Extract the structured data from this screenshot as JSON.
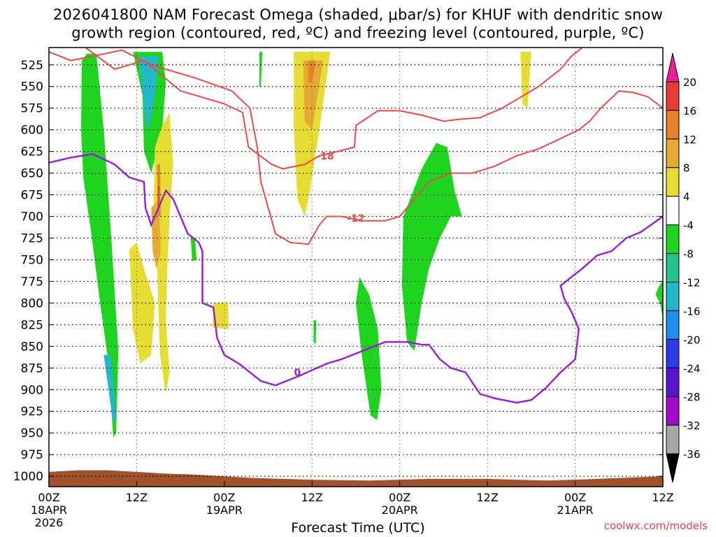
{
  "title": {
    "line1": "2026041800 NAM Forecast Omega (shaded, μbar/s) for KHUF with dendritic snow",
    "line2": "growth region (contoured, red, ºC) and freezing level (contoured, purple, ºC)"
  },
  "footer": "coolwx.com/models",
  "colors": {
    "ascent_green": "#1fd41f",
    "ascent_teal": "#24c48a",
    "ascent_cyan": "#22b8c8",
    "descent_yellow": "#e6dc32",
    "descent_gold": "#e6aa32",
    "descent_orange": "#e8822a",
    "descent_red": "#ea3a3a",
    "snow_growth_contour": "#f04848",
    "freezing_level_contour": "#9a1ad6",
    "ground": "#a0522d"
  },
  "chart_data": {
    "type": "heatmap",
    "xlabel": "Forecast Time (UTC)",
    "x_ticks": [
      {
        "hour": 0,
        "label": "00Z",
        "date": "18APR",
        "year": "2026"
      },
      {
        "hour": 12,
        "label": "12Z",
        "date": "",
        "year": ""
      },
      {
        "hour": 24,
        "label": "00Z",
        "date": "19APR",
        "year": ""
      },
      {
        "hour": 36,
        "label": "12Z",
        "date": "",
        "year": ""
      },
      {
        "hour": 48,
        "label": "00Z",
        "date": "20APR",
        "year": ""
      },
      {
        "hour": 60,
        "label": "12Z",
        "date": "",
        "year": ""
      },
      {
        "hour": 72,
        "label": "00Z",
        "date": "21APR",
        "year": ""
      },
      {
        "hour": 84,
        "label": "12Z",
        "date": "",
        "year": ""
      }
    ],
    "xlim": [
      0,
      84
    ],
    "ylim": [
      1012,
      505
    ],
    "y_ticks": [
      525,
      550,
      575,
      600,
      625,
      650,
      675,
      700,
      725,
      750,
      775,
      800,
      825,
      850,
      875,
      900,
      925,
      950,
      975,
      1000
    ],
    "grid": true,
    "colorbar": {
      "labels": [
        "20",
        "16",
        "12",
        "8",
        "4",
        "-4",
        "-8",
        "-12",
        "-16",
        "-20",
        "-24",
        "-28",
        "-32",
        "-36"
      ],
      "bins": [
        {
          "color": "#ee1e96"
        },
        {
          "color": "#ea3a3a"
        },
        {
          "color": "#e8822a"
        },
        {
          "color": "#e6aa32"
        },
        {
          "color": "#e6dc32"
        },
        {
          "color": "#ffffff"
        },
        {
          "color": "#1fd41f"
        },
        {
          "color": "#24c48a"
        },
        {
          "color": "#22b8c8"
        },
        {
          "color": "#1e8cf0"
        },
        {
          "color": "#2a3ce6"
        },
        {
          "color": "#5a14d0"
        },
        {
          "color": "#a40ac8"
        },
        {
          "color": "#a8a8a8"
        },
        {
          "color": "#000000"
        }
      ]
    },
    "omega_regions": [
      {
        "level": -6,
        "points": [
          [
            5.2,
            512
          ],
          [
            6.5,
            512
          ],
          [
            7.5,
            600
          ],
          [
            8.5,
            720
          ],
          [
            9.5,
            855
          ],
          [
            9.2,
            950
          ],
          [
            8.8,
            955
          ],
          [
            8.0,
            860
          ],
          [
            7.0,
            800
          ],
          [
            5.8,
            720
          ],
          [
            4.7,
            655
          ],
          [
            4.4,
            600
          ],
          [
            4.5,
            520
          ]
        ]
      },
      {
        "level": -6,
        "points": [
          [
            11.5,
            510
          ],
          [
            15.5,
            510
          ],
          [
            16.0,
            545
          ],
          [
            15.5,
            600
          ],
          [
            14.0,
            650
          ],
          [
            13.0,
            625
          ],
          [
            12.8,
            560
          ]
        ]
      },
      {
        "level": -14,
        "points": [
          [
            12.3,
            515
          ],
          [
            15.0,
            515
          ],
          [
            14.5,
            560
          ],
          [
            13.6,
            600
          ],
          [
            13.2,
            590
          ]
        ]
      },
      {
        "level": -14,
        "points": [
          [
            7.5,
            860
          ],
          [
            8.5,
            860
          ],
          [
            9.2,
            930
          ],
          [
            8.8,
            940
          ]
        ]
      },
      {
        "level": -6,
        "points": [
          [
            28.8,
            510
          ],
          [
            29.2,
            510
          ],
          [
            29.0,
            550
          ],
          [
            28.8,
            550
          ]
        ]
      },
      {
        "level": -6,
        "points": [
          [
            19.4,
            725
          ],
          [
            20.0,
            725
          ],
          [
            20.2,
            750
          ],
          [
            19.6,
            752
          ]
        ]
      },
      {
        "level": -6,
        "points": [
          [
            36.2,
            820
          ],
          [
            36.6,
            820
          ],
          [
            36.5,
            848
          ],
          [
            36.2,
            845
          ]
        ]
      },
      {
        "level": -6,
        "points": [
          [
            42.5,
            770
          ],
          [
            43.8,
            790
          ],
          [
            45.0,
            830
          ],
          [
            45.5,
            900
          ],
          [
            44.9,
            935
          ],
          [
            44.0,
            930
          ],
          [
            42.8,
            860
          ],
          [
            42.0,
            800
          ]
        ]
      },
      {
        "level": -6,
        "points": [
          [
            48.5,
            700
          ],
          [
            51.0,
            645
          ],
          [
            53.0,
            615
          ],
          [
            54.5,
            620
          ],
          [
            55.5,
            670
          ],
          [
            56.5,
            700
          ],
          [
            55.0,
            700
          ],
          [
            53.5,
            725
          ],
          [
            52.0,
            760
          ],
          [
            51.0,
            800
          ],
          [
            50.0,
            855
          ],
          [
            49.0,
            845
          ],
          [
            48.3,
            780
          ]
        ]
      },
      {
        "level": -6,
        "points": [
          [
            85.5,
            757
          ],
          [
            86.6,
            760
          ],
          [
            87.0,
            830
          ],
          [
            86.5,
            930
          ],
          [
            86.0,
            940
          ],
          [
            84.8,
            920
          ],
          [
            85.0,
            860
          ],
          [
            83.6,
            800
          ],
          [
            83.0,
            790
          ],
          [
            83.5,
            780
          ]
        ]
      },
      {
        "level": 6,
        "points": [
          [
            11.0,
            738
          ],
          [
            12.0,
            730
          ],
          [
            13.0,
            760
          ],
          [
            14.5,
            800
          ],
          [
            14.0,
            860
          ],
          [
            12.5,
            870
          ],
          [
            11.5,
            830
          ]
        ]
      },
      {
        "level": 6,
        "points": [
          [
            14.5,
            620
          ],
          [
            15.5,
            595
          ],
          [
            16.5,
            580
          ],
          [
            17.0,
            640
          ],
          [
            16.5,
            700
          ],
          [
            16.2,
            760
          ],
          [
            16.0,
            820
          ],
          [
            16.5,
            880
          ],
          [
            16.0,
            905
          ],
          [
            15.2,
            860
          ],
          [
            14.8,
            760
          ],
          [
            14.3,
            700
          ]
        ]
      },
      {
        "level": 6,
        "points": [
          [
            33.5,
            510
          ],
          [
            38.5,
            510
          ],
          [
            37.0,
            600
          ],
          [
            35.5,
            680
          ],
          [
            35.0,
            700
          ],
          [
            34.0,
            680
          ],
          [
            33.5,
            600
          ]
        ]
      },
      {
        "level": 6,
        "points": [
          [
            22.5,
            800
          ],
          [
            24.5,
            800
          ],
          [
            24.6,
            830
          ],
          [
            22.4,
            828
          ]
        ]
      },
      {
        "level": 6,
        "points": [
          [
            64.5,
            510
          ],
          [
            66.0,
            510
          ],
          [
            65.5,
            575
          ],
          [
            64.8,
            570
          ]
        ]
      },
      {
        "level": 10,
        "points": [
          [
            14.0,
            690
          ],
          [
            15.0,
            680
          ],
          [
            15.3,
            740
          ],
          [
            14.7,
            760
          ],
          [
            14.2,
            740
          ]
        ]
      },
      {
        "level": 10,
        "points": [
          [
            34.8,
            520
          ],
          [
            37.5,
            520
          ],
          [
            36.0,
            600
          ],
          [
            35.0,
            590
          ]
        ]
      },
      {
        "level": 14,
        "points": [
          [
            14.8,
            640
          ],
          [
            15.2,
            640
          ],
          [
            15.3,
            700
          ],
          [
            14.9,
            700
          ]
        ]
      },
      {
        "level": 14,
        "points": [
          [
            35.5,
            520
          ],
          [
            36.5,
            520
          ],
          [
            36.0,
            545
          ],
          [
            35.5,
            545
          ]
        ]
      },
      {
        "level": 18,
        "points": [
          [
            14.9,
            665
          ],
          [
            15.1,
            665
          ],
          [
            15.1,
            690
          ],
          [
            14.9,
            690
          ]
        ]
      }
    ],
    "snow_growth_contours": [
      {
        "label": "-12",
        "label_at": [
          42.0,
          702
        ],
        "points": [
          [
            0,
            510
          ],
          [
            3.0,
            520
          ],
          [
            6.0,
            515
          ],
          [
            10.0,
            508
          ],
          [
            14.0,
            525
          ],
          [
            20.0,
            540
          ],
          [
            25.0,
            555
          ],
          [
            27.5,
            575
          ],
          [
            28.5,
            620
          ],
          [
            29.0,
            660
          ],
          [
            30.0,
            690
          ],
          [
            31.0,
            720
          ],
          [
            33.0,
            730
          ],
          [
            35.5,
            732
          ],
          [
            37.0,
            710
          ],
          [
            38.0,
            700
          ],
          [
            40.0,
            700
          ],
          [
            43.0,
            705
          ],
          [
            46.0,
            705
          ],
          [
            48.0,
            700
          ],
          [
            50.0,
            680
          ],
          [
            52.0,
            660
          ],
          [
            55.0,
            650
          ],
          [
            58.0,
            650
          ],
          [
            61.0,
            642
          ],
          [
            64.0,
            630
          ],
          [
            67.0,
            622
          ],
          [
            70.0,
            610
          ],
          [
            72.5,
            600
          ],
          [
            74.0,
            590
          ],
          [
            75.5,
            575
          ],
          [
            78.0,
            555
          ],
          [
            80.0,
            557
          ],
          [
            82.0,
            562
          ],
          [
            84.0,
            575
          ]
        ]
      },
      {
        "label": "-18",
        "label_at": [
          37.8,
          630
        ],
        "points": [
          [
            5.0,
            505
          ],
          [
            9.0,
            530
          ],
          [
            13.0,
            520
          ],
          [
            18.0,
            555
          ],
          [
            24.0,
            570
          ],
          [
            26.5,
            580
          ],
          [
            27.3,
            620
          ],
          [
            30.5,
            640
          ],
          [
            32.0,
            645
          ],
          [
            35.0,
            640
          ],
          [
            37.0,
            630
          ],
          [
            39.5,
            625
          ],
          [
            41.8,
            620
          ],
          [
            42.0,
            595
          ],
          [
            45.0,
            578
          ],
          [
            48.0,
            578
          ],
          [
            51.0,
            583
          ],
          [
            54.0,
            590
          ],
          [
            56.0,
            588
          ],
          [
            59.0,
            586
          ],
          [
            62.0,
            575
          ],
          [
            64.0,
            565
          ],
          [
            67.0,
            550
          ],
          [
            70.0,
            530
          ],
          [
            71.5,
            515
          ],
          [
            73.0,
            505
          ]
        ]
      }
    ],
    "freezing_level_contour": {
      "label": "0",
      "label_at": [
        34.0,
        880
      ],
      "points": [
        [
          0,
          638
        ],
        [
          3.0,
          632
        ],
        [
          6.0,
          628
        ],
        [
          9.0,
          640
        ],
        [
          11.0,
          655
        ],
        [
          13.0,
          660
        ],
        [
          13.2,
          690
        ],
        [
          14.0,
          710
        ],
        [
          16.0,
          670
        ],
        [
          17.0,
          680
        ],
        [
          18.0,
          700
        ],
        [
          19.0,
          720
        ],
        [
          20.5,
          730
        ],
        [
          21.0,
          740
        ],
        [
          21.0,
          800
        ],
        [
          22.5,
          805
        ],
        [
          23.0,
          840
        ],
        [
          24.0,
          860
        ],
        [
          26.0,
          870
        ],
        [
          29.0,
          890
        ],
        [
          31.0,
          895
        ],
        [
          34.0,
          885
        ],
        [
          38.0,
          870
        ],
        [
          40.0,
          865
        ],
        [
          43.0,
          855
        ],
        [
          46.0,
          845
        ],
        [
          49.0,
          845
        ],
        [
          51.0,
          848
        ],
        [
          52.0,
          848
        ],
        [
          53.5,
          865
        ],
        [
          55.0,
          875
        ],
        [
          57.0,
          880
        ],
        [
          59.0,
          905
        ],
        [
          61.0,
          910
        ],
        [
          64.0,
          915
        ],
        [
          66.0,
          912
        ],
        [
          68.0,
          898
        ],
        [
          70.0,
          880
        ],
        [
          72.0,
          865
        ],
        [
          72.5,
          830
        ],
        [
          71.5,
          810
        ],
        [
          70.5,
          795
        ],
        [
          70.0,
          780
        ],
        [
          71.5,
          770
        ],
        [
          73.0,
          760
        ],
        [
          75.0,
          745
        ],
        [
          77.0,
          740
        ],
        [
          79.0,
          725
        ],
        [
          81.0,
          718
        ],
        [
          84.0,
          700
        ]
      ]
    },
    "ground": {
      "points": [
        [
          0,
          995
        ],
        [
          4.0,
          993
        ],
        [
          8.0,
          993
        ],
        [
          12.0,
          995
        ],
        [
          16.0,
          997
        ],
        [
          20.0,
          998
        ],
        [
          28.0,
          1002
        ],
        [
          36.0,
          1004
        ],
        [
          44.0,
          1005
        ],
        [
          52.0,
          1003
        ],
        [
          60.0,
          1003
        ],
        [
          64.0,
          1004
        ],
        [
          68.0,
          1005
        ],
        [
          72.0,
          1004
        ],
        [
          78.0,
          1002
        ],
        [
          84.0,
          1000
        ]
      ]
    }
  }
}
